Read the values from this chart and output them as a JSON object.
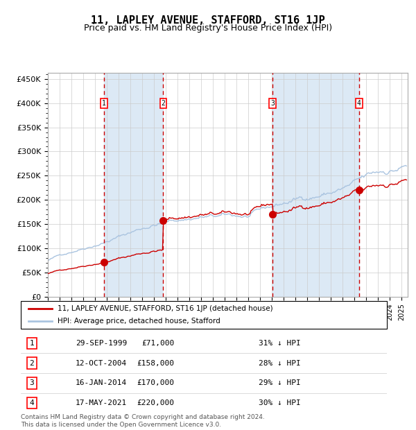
{
  "title": "11, LAPLEY AVENUE, STAFFORD, ST16 1JP",
  "subtitle": "Price paid vs. HM Land Registry's House Price Index (HPI)",
  "ylabel_labels": [
    "£0",
    "£50K",
    "£100K",
    "£150K",
    "£200K",
    "£250K",
    "£300K",
    "£350K",
    "£400K",
    "£450K"
  ],
  "ylabel_values": [
    0,
    50000,
    100000,
    150000,
    200000,
    250000,
    300000,
    350000,
    400000,
    450000
  ],
  "xlim": [
    1995.0,
    2025.5
  ],
  "ylim": [
    0,
    462000
  ],
  "sale_dates": [
    1999.747,
    2004.781,
    2014.046,
    2021.372
  ],
  "sale_prices": [
    71000,
    158000,
    170000,
    220000
  ],
  "sale_labels": [
    "1",
    "2",
    "3",
    "4"
  ],
  "legend_line1": "11, LAPLEY AVENUE, STAFFORD, ST16 1JP (detached house)",
  "legend_line2": "HPI: Average price, detached house, Stafford",
  "table_rows": [
    [
      "1",
      "29-SEP-1999",
      "£71,000",
      "31% ↓ HPI"
    ],
    [
      "2",
      "12-OCT-2004",
      "£158,000",
      "28% ↓ HPI"
    ],
    [
      "3",
      "16-JAN-2014",
      "£170,000",
      "29% ↓ HPI"
    ],
    [
      "4",
      "17-MAY-2021",
      "£220,000",
      "30% ↓ HPI"
    ]
  ],
  "footnote": "Contains HM Land Registry data © Crown copyright and database right 2024.\nThis data is licensed under the Open Government Licence v3.0.",
  "hpi_color": "#aac4e0",
  "price_color": "#cc0000",
  "marker_color": "#cc0000",
  "dashed_line_color": "#cc0000",
  "bg_shaded_color": "#dce9f5",
  "grid_color": "#cccccc",
  "title_fontsize": 11,
  "subtitle_fontsize": 9,
  "axis_fontsize": 8
}
